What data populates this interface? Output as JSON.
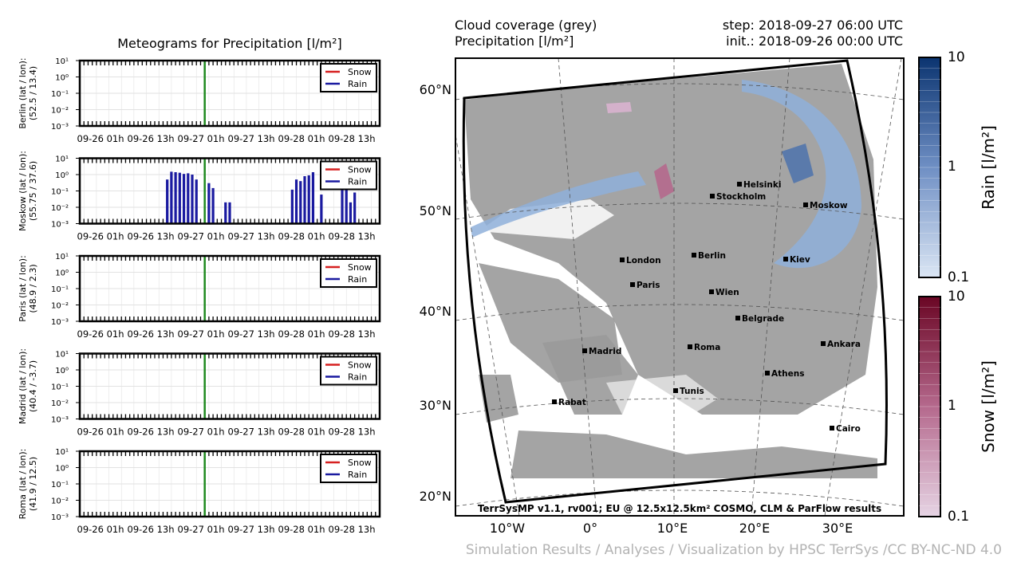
{
  "meteogram_title": "Meteograms for Precipitation [l/m²]",
  "map_header": {
    "left_line1": "Cloud coverage (grey)",
    "left_line2": "Precipitation [l/m²]",
    "right_line1": "step: 2018-09-27 06:00 UTC",
    "right_line2": "init.: 2018-09-26 00:00 UTC"
  },
  "footer_credit": "Simulation Results / Analyses / Visualization by HPSC TerrSys /CC BY-NC-ND 4.0",
  "map_credit": "TerrSysMP v1.1, rv001; EU @ 12.5x12.5km² COSMO, CLM & ParFlow results",
  "colors": {
    "rain_bar": "#1a1aa0",
    "snow_line": "#d62020",
    "rain_line": "#1a1aa0",
    "current_marker": "#1f8a1f",
    "cloud_grey": "#9a9a9a",
    "rain_dark": "#0b3470",
    "rain_light": "#dbe6f4",
    "snow_dark": "#6a0624",
    "snow_light": "#e6d4e4"
  },
  "chart_data": [
    {
      "type": "bar",
      "city": "Berlin",
      "ylabel_line1": "Berlin (lat / lon):",
      "ylabel_line2": "(52.5 / 13.4)",
      "yscale": "log",
      "ylim": [
        0.001,
        10
      ],
      "ytick_labels": [
        "10⁻³",
        "10⁻²",
        "10⁻¹",
        "10⁰",
        "10¹"
      ],
      "xtick_labels": [
        "09-26 01h",
        "09-26 13h",
        "09-27 01h",
        "09-27 13h",
        "09-28 01h",
        "09-28 13h"
      ],
      "hours": 72,
      "current_hour": 30,
      "legend": [
        "Snow",
        "Rain"
      ],
      "legend_position": "top-right",
      "rain": [],
      "snow": []
    },
    {
      "type": "bar",
      "city": "Moskow",
      "ylabel_line1": "Moskow (lat / lon):",
      "ylabel_line2": "(55.75 / 37.6)",
      "yscale": "log",
      "ylim": [
        0.001,
        10
      ],
      "ytick_labels": [
        "10⁻³",
        "10⁻²",
        "10⁻¹",
        "10⁰",
        "10¹"
      ],
      "xtick_labels": [
        "09-26 01h",
        "09-26 13h",
        "09-27 01h",
        "09-27 13h",
        "09-28 01h",
        "09-28 13h"
      ],
      "hours": 72,
      "current_hour": 30,
      "legend": [
        "Snow",
        "Rain"
      ],
      "legend_position": "top-right",
      "rain": [
        {
          "hour": 21,
          "value": 0.5
        },
        {
          "hour": 22,
          "value": 1.5
        },
        {
          "hour": 23,
          "value": 1.4
        },
        {
          "hour": 24,
          "value": 1.3
        },
        {
          "hour": 25,
          "value": 1.1
        },
        {
          "hour": 26,
          "value": 1.2
        },
        {
          "hour": 27,
          "value": 1.0
        },
        {
          "hour": 28,
          "value": 0.5
        },
        {
          "hour": 31,
          "value": 0.3
        },
        {
          "hour": 32,
          "value": 0.15
        },
        {
          "hour": 35,
          "value": 0.02
        },
        {
          "hour": 36,
          "value": 0.02
        },
        {
          "hour": 51,
          "value": 0.12
        },
        {
          "hour": 52,
          "value": 0.5
        },
        {
          "hour": 53,
          "value": 0.4
        },
        {
          "hour": 54,
          "value": 0.8
        },
        {
          "hour": 55,
          "value": 0.9
        },
        {
          "hour": 56,
          "value": 1.4
        },
        {
          "hour": 58,
          "value": 0.06
        },
        {
          "hour": 63,
          "value": 0.2
        },
        {
          "hour": 64,
          "value": 0.3
        },
        {
          "hour": 65,
          "value": 0.02
        },
        {
          "hour": 66,
          "value": 0.08
        }
      ],
      "snow": []
    },
    {
      "type": "bar",
      "city": "Paris",
      "ylabel_line1": "Paris (lat / lon):",
      "ylabel_line2": "(48.9 / 2.3)",
      "yscale": "log",
      "ylim": [
        0.001,
        10
      ],
      "ytick_labels": [
        "10⁻³",
        "10⁻²",
        "10⁻¹",
        "10⁰",
        "10¹"
      ],
      "xtick_labels": [
        "09-26 01h",
        "09-26 13h",
        "09-27 01h",
        "09-27 13h",
        "09-28 01h",
        "09-28 13h"
      ],
      "hours": 72,
      "current_hour": 30,
      "legend": [
        "Snow",
        "Rain"
      ],
      "legend_position": "top-right",
      "rain": [],
      "snow": []
    },
    {
      "type": "bar",
      "city": "Madrid",
      "ylabel_line1": "Madrid (lat / lon):",
      "ylabel_line2": "(40.4 / -3.7)",
      "yscale": "log",
      "ylim": [
        0.001,
        10
      ],
      "ytick_labels": [
        "10⁻³",
        "10⁻²",
        "10⁻¹",
        "10⁰",
        "10¹"
      ],
      "xtick_labels": [
        "09-26 01h",
        "09-26 13h",
        "09-27 01h",
        "09-27 13h",
        "09-28 01h",
        "09-28 13h"
      ],
      "hours": 72,
      "current_hour": 30,
      "legend": [
        "Snow",
        "Rain"
      ],
      "legend_position": "top-right",
      "rain": [],
      "snow": []
    },
    {
      "type": "bar",
      "city": "Roma",
      "ylabel_line1": "Roma (lat / lon):",
      "ylabel_line2": "(41.9 / 12.5)",
      "yscale": "log",
      "ylim": [
        0.001,
        10
      ],
      "ytick_labels": [
        "10⁻³",
        "10⁻²",
        "10⁻¹",
        "10⁰",
        "10¹"
      ],
      "xtick_labels": [
        "09-26 01h",
        "09-26 13h",
        "09-27 01h",
        "09-27 13h",
        "09-28 01h",
        "09-28 13h"
      ],
      "hours": 72,
      "current_hour": 30,
      "legend": [
        "Snow",
        "Rain"
      ],
      "legend_position": "top-right",
      "rain": [],
      "snow": []
    },
    {
      "type": "heatmap",
      "map": "Europe precipitation and cloud coverage",
      "lat_labels": [
        "60°N",
        "50°N",
        "40°N",
        "30°N",
        "20°N"
      ],
      "lon_labels": [
        "10°W",
        "0°",
        "10°E",
        "20°E",
        "30°E"
      ],
      "cities": [
        {
          "name": "Helsinki",
          "lat": 60.2,
          "lon": 24.9
        },
        {
          "name": "Stockholm",
          "lat": 59.3,
          "lon": 18.1
        },
        {
          "name": "Moskow",
          "lat": 55.75,
          "lon": 37.6
        },
        {
          "name": "London",
          "lat": 51.5,
          "lon": -0.1
        },
        {
          "name": "Berlin",
          "lat": 52.5,
          "lon": 13.4
        },
        {
          "name": "Kiev",
          "lat": 50.4,
          "lon": 30.5
        },
        {
          "name": "Paris",
          "lat": 48.9,
          "lon": 2.3
        },
        {
          "name": "Wien",
          "lat": 48.2,
          "lon": 16.4
        },
        {
          "name": "Belgrade",
          "lat": 44.8,
          "lon": 20.5
        },
        {
          "name": "Madrid",
          "lat": 40.4,
          "lon": -3.7
        },
        {
          "name": "Roma",
          "lat": 41.9,
          "lon": 12.5
        },
        {
          "name": "Ankara",
          "lat": 39.9,
          "lon": 32.9
        },
        {
          "name": "Athens",
          "lat": 38.0,
          "lon": 23.7
        },
        {
          "name": "Tunis",
          "lat": 36.8,
          "lon": 10.2
        },
        {
          "name": "Rabat",
          "lat": 34.0,
          "lon": -6.8
        },
        {
          "name": "Cairo",
          "lat": 30.0,
          "lon": 31.2
        }
      ],
      "colorbars": [
        {
          "label": "Rain [l/m²]",
          "tick_labels": [
            "10",
            "1",
            "0.1"
          ],
          "range": [
            0.1,
            10
          ],
          "scale": "log"
        },
        {
          "label": "Snow [l/m²]",
          "tick_labels": [
            "10",
            "1",
            "0.1"
          ],
          "range": [
            0.1,
            10
          ],
          "scale": "log"
        }
      ]
    }
  ]
}
